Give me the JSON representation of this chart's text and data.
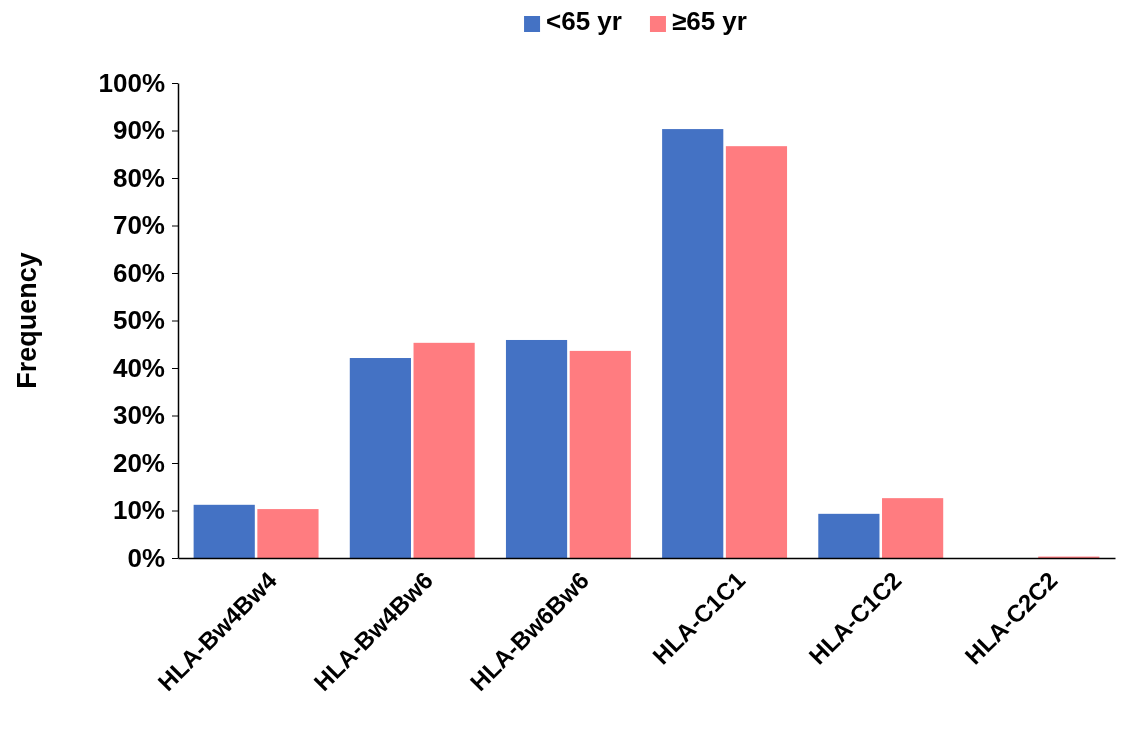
{
  "chart_data": {
    "type": "bar",
    "ylabel": "Frequency",
    "categories": [
      "HLA-Bw4Bw4",
      "HLA-Bw4Bw6",
      "HLA-Bw6Bw6",
      "HLA-C1C1",
      "HLA-C1C2",
      "HLA-C2C2"
    ],
    "series": [
      {
        "name": "<65 yr",
        "color": "#4472c4",
        "values": [
          11.2,
          42.1,
          45.9,
          90.3,
          9.3,
          0
        ]
      },
      {
        "name": "≥65 yr",
        "color": "#ff7c80",
        "values": [
          10.3,
          45.3,
          43.6,
          86.7,
          12.6,
          0.3
        ]
      }
    ],
    "ylim": [
      0,
      100
    ],
    "yticks": [
      {
        "value": 0,
        "label": "0%"
      },
      {
        "value": 10,
        "label": "10%"
      },
      {
        "value": 20,
        "label": "20%"
      },
      {
        "value": 30,
        "label": "30%"
      },
      {
        "value": 40,
        "label": "40%"
      },
      {
        "value": 50,
        "label": "50%"
      },
      {
        "value": 60,
        "label": "60%"
      },
      {
        "value": 70,
        "label": "70%"
      },
      {
        "value": 80,
        "label": "80%"
      },
      {
        "value": 90,
        "label": "90%"
      },
      {
        "value": 100,
        "label": "100%"
      }
    ],
    "grid": false,
    "legend": "top"
  }
}
